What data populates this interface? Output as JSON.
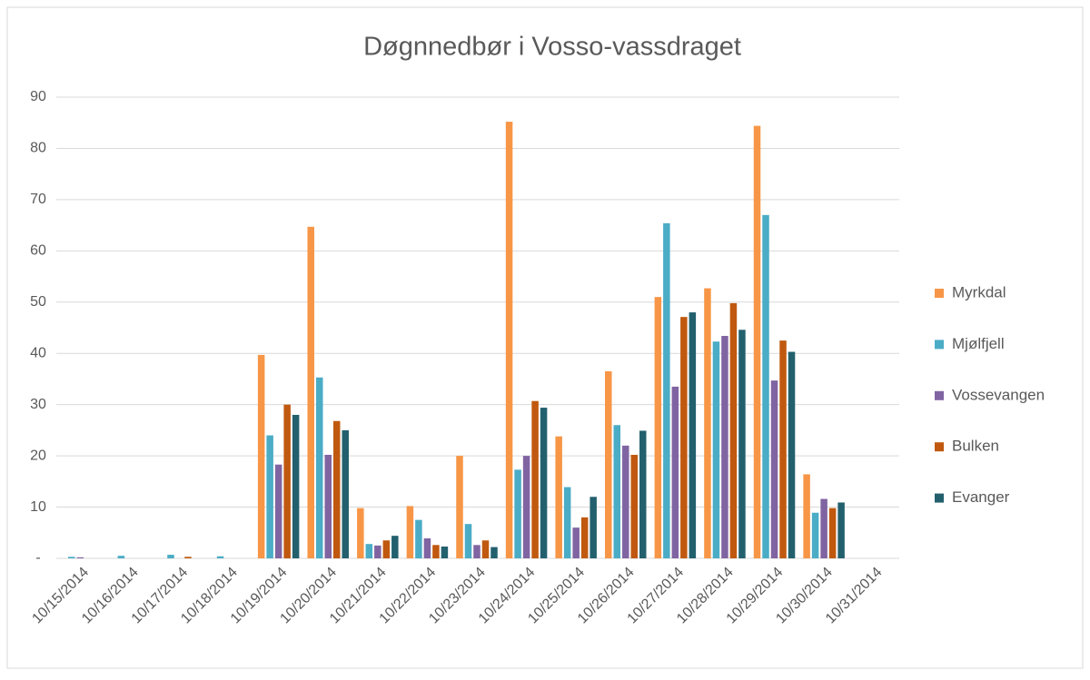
{
  "chart_data": {
    "type": "bar",
    "title": "Døgnnedbør i Vosso-vassdraget",
    "categories": [
      "10/15/2014",
      "10/16/2014",
      "10/17/2014",
      "10/18/2014",
      "10/19/2014",
      "10/20/2014",
      "10/21/2014",
      "10/22/2014",
      "10/23/2014",
      "10/24/2014",
      "10/25/2014",
      "10/26/2014",
      "10/27/2014",
      "10/28/2014",
      "10/29/2014",
      "10/30/2014",
      "10/31/2014"
    ],
    "series": [
      {
        "name": "Myrkdal",
        "color": "#f79646",
        "values": [
          0,
          0,
          0,
          0,
          39.7,
          64.7,
          9.8,
          10.2,
          20,
          85.2,
          23.8,
          36.5,
          51,
          52.7,
          84.4,
          16.4,
          0
        ]
      },
      {
        "name": "Mjølfjell",
        "color": "#4bacc6",
        "values": [
          0.3,
          0.5,
          0.7,
          0.4,
          24,
          35.3,
          2.8,
          7.5,
          6.7,
          17.3,
          13.9,
          26,
          65.4,
          42.3,
          67,
          8.9,
          0
        ]
      },
      {
        "name": "Vossevangen",
        "color": "#8064a2",
        "values": [
          0.2,
          0,
          0,
          0,
          18.3,
          20.2,
          2.5,
          3.9,
          2.6,
          20,
          6,
          22,
          33.5,
          43.4,
          34.7,
          11.6,
          0
        ]
      },
      {
        "name": "Bulken",
        "color": "#c0590f",
        "values": [
          0,
          0,
          0.3,
          0,
          30,
          26.8,
          3.5,
          2.6,
          3.5,
          30.7,
          8,
          20.2,
          47.1,
          49.8,
          42.5,
          9.8,
          0
        ]
      },
      {
        "name": "Evanger",
        "color": "#23606e",
        "values": [
          0,
          0,
          0,
          0,
          28,
          25,
          4.4,
          2.3,
          2.2,
          29.4,
          12,
          24.9,
          48,
          44.6,
          40.3,
          10.9,
          0
        ]
      }
    ],
    "ylim": [
      0,
      90
    ],
    "yticks": [
      {
        "value": 0,
        "label": "-"
      },
      10,
      20,
      30,
      40,
      50,
      60,
      70,
      80,
      90
    ],
    "grid": true,
    "legend": "right"
  }
}
